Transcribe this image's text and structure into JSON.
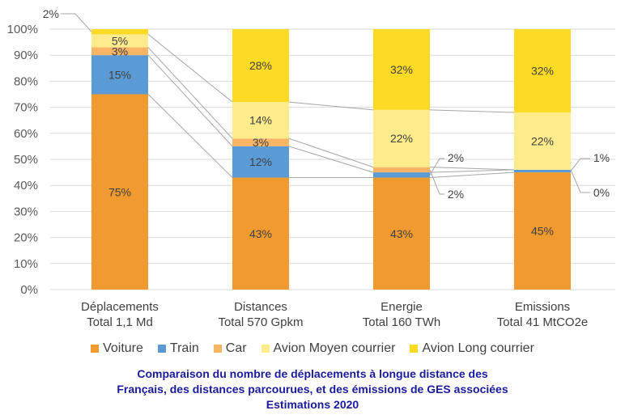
{
  "chart_data": {
    "type": "bar",
    "stacked": true,
    "categories": [
      [
        "Déplacements",
        "Total 1,1 Md"
      ],
      [
        "Distances",
        "Total 570 Gpkm"
      ],
      [
        "Energie",
        "Total 160 TWh"
      ],
      [
        "Emissions",
        "Total 41 MtCO2e"
      ]
    ],
    "series": [
      {
        "name": "Voiture",
        "color": "#F09A30",
        "values": [
          75,
          43,
          43,
          45
        ],
        "labels": [
          "75%",
          "43%",
          "43%",
          "45%"
        ]
      },
      {
        "name": "Train",
        "color": "#5B9BD5",
        "values": [
          15,
          12,
          2,
          1
        ],
        "labels": [
          "15%",
          "12%",
          "2%",
          "1%"
        ]
      },
      {
        "name": "Car",
        "color": "#F7B565",
        "values": [
          3,
          3,
          2,
          0
        ],
        "labels": [
          "3%",
          "3%",
          "2%",
          "0%"
        ]
      },
      {
        "name": "Avion Moyen courrier",
        "color": "#FDEB8C",
        "values": [
          5,
          14,
          22,
          22
        ],
        "labels": [
          "5%",
          "14%",
          "22%",
          "22%"
        ]
      },
      {
        "name": "Avion Long courrier",
        "color": "#FDDA24",
        "values": [
          2,
          28,
          32,
          32
        ],
        "labels": [
          "2%",
          "28%",
          "32%",
          "32%"
        ]
      }
    ],
    "ylim": [
      0,
      100
    ],
    "yticks": [
      "0%",
      "10%",
      "20%",
      "30%",
      "40%",
      "50%",
      "60%",
      "70%",
      "80%",
      "90%",
      "100%"
    ],
    "grid": true,
    "legend_position": "bottom"
  },
  "caption": {
    "line1": "Comparaison du nombre de déplacements à longue distance des",
    "line2": "Français, des distances parcourues, et des émissions de GES associées",
    "line3": "Estimations 2020"
  }
}
